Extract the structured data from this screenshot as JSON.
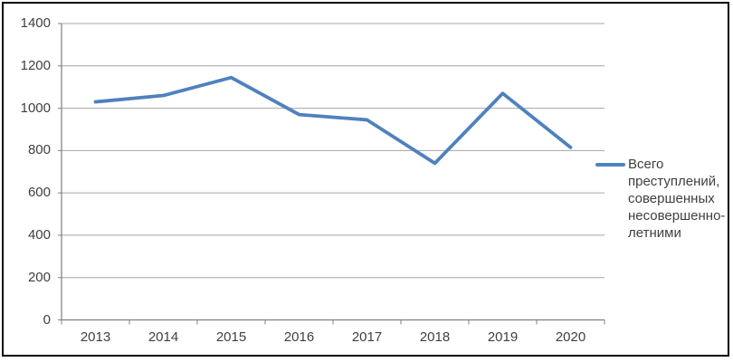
{
  "chart_data": {
    "type": "line",
    "title": "",
    "xlabel": "",
    "ylabel": "",
    "categories": [
      "2013",
      "2014",
      "2015",
      "2016",
      "2017",
      "2018",
      "2019",
      "2020"
    ],
    "series": [
      {
        "name": "Всего преступлений, совершенных несовершенно-летними",
        "values": [
          1030,
          1060,
          1145,
          970,
          945,
          740,
          1070,
          815
        ]
      }
    ],
    "ylim": [
      0,
      1400
    ],
    "ytick_step": 200,
    "ytick_labels": [
      "0",
      "200",
      "400",
      "600",
      "800",
      "1000",
      "1200",
      "1400"
    ],
    "grid": "horizontal",
    "legend_position": "right"
  },
  "legend": {
    "label": "Всего преступлений, совершенных несовершенно-летними"
  },
  "colors": {
    "series_line": "#4F81BD",
    "gridline": "#A6A6A6",
    "axis_line": "#808080",
    "tick": "#808080",
    "label_text": "#3F3F3F",
    "frame_border": "#000000",
    "background": "#FFFFFF"
  }
}
